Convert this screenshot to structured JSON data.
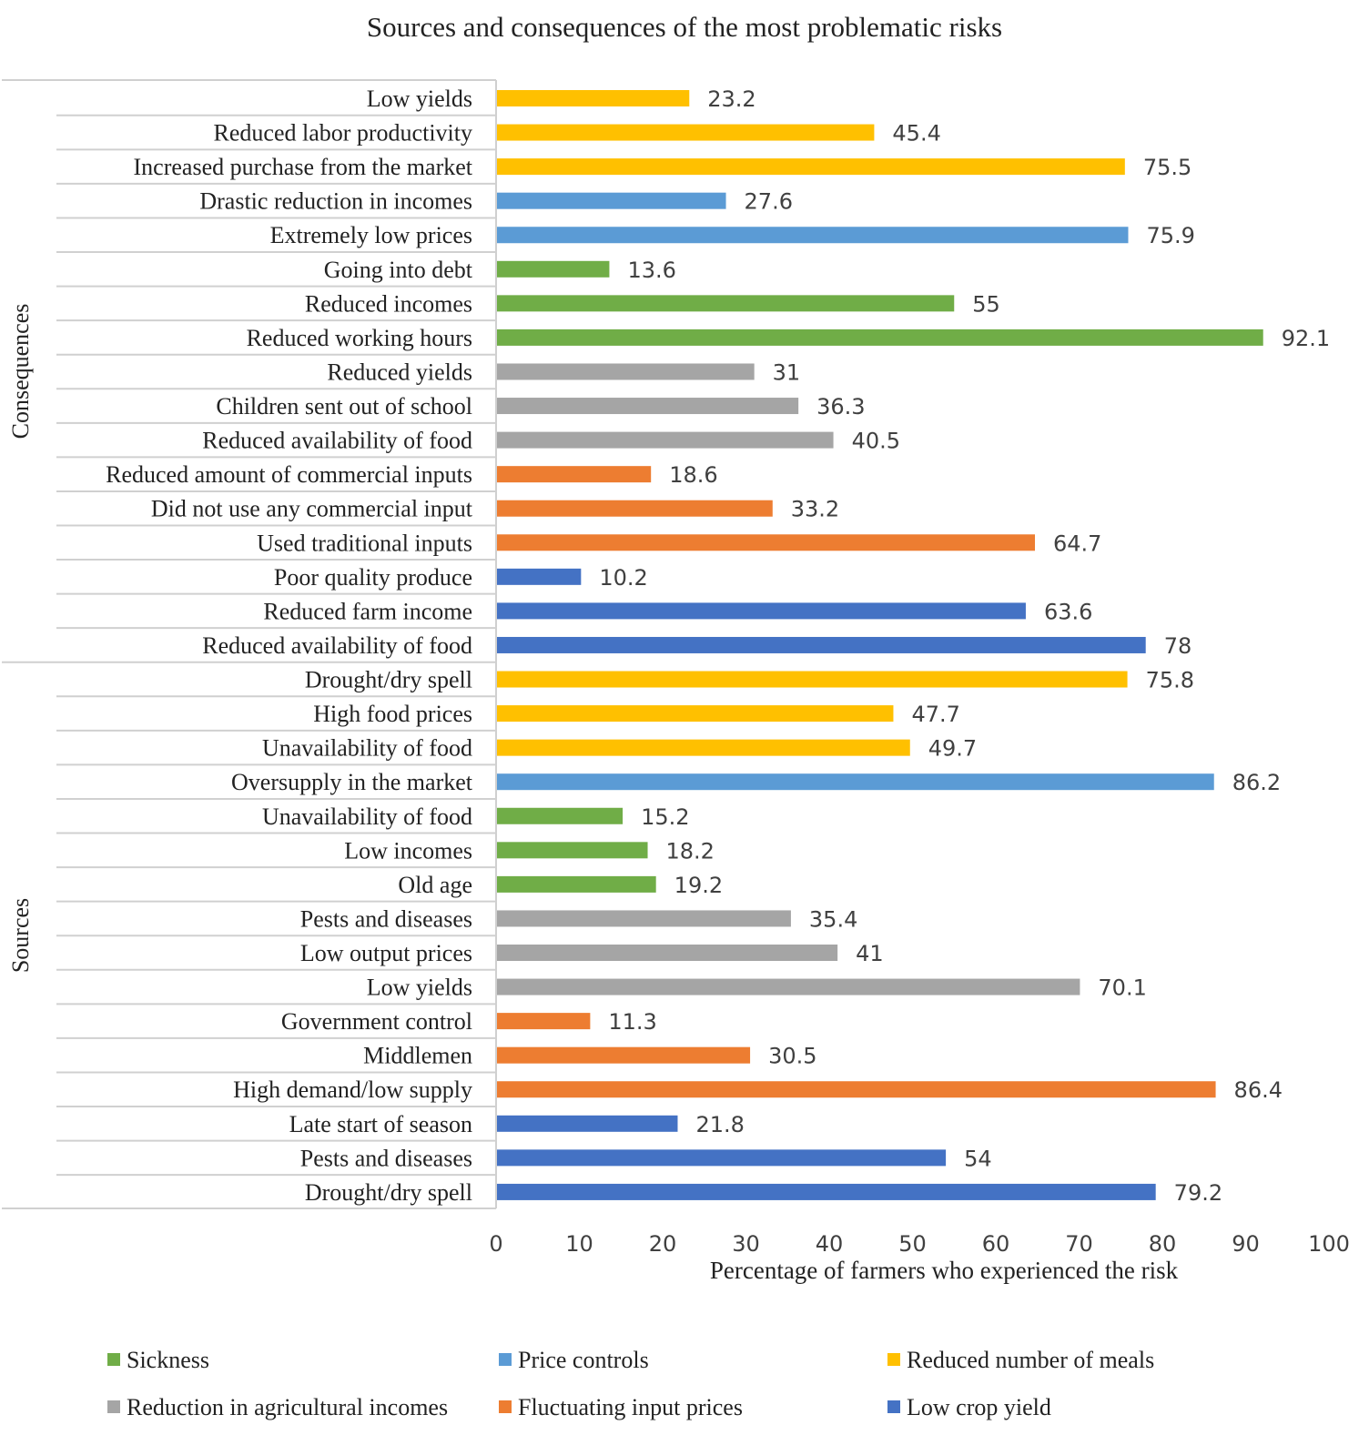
{
  "colors": {
    "sickness": "#70AD47",
    "price_controls": "#5B9BD5",
    "reduced_meals": "#FFC000",
    "agri_incomes": "#A5A5A5",
    "input_prices": "#ED7D31",
    "low_crop_yield": "#4472C4"
  },
  "chart_data": {
    "type": "bar",
    "orientation": "horizontal",
    "title": "Sources and consequences of the most problematic risks",
    "xlabel": "Percentage of farmers who experienced the risk",
    "ylabel": "",
    "xlim": [
      0,
      100
    ],
    "xticks": [
      "0",
      "10",
      "20",
      "30",
      "40",
      "50",
      "60",
      "70",
      "80",
      "90",
      "100"
    ],
    "group_labels": [
      "Consequences",
      "Sources"
    ],
    "legend": [
      {
        "label": "Sickness",
        "color_key": "sickness"
      },
      {
        "label": "Price controls",
        "color_key": "price_controls"
      },
      {
        "label": "Reduced number of meals",
        "color_key": "reduced_meals"
      },
      {
        "label": "Reduction in agricultural incomes",
        "color_key": "agri_incomes"
      },
      {
        "label": "Fluctuating input prices",
        "color_key": "input_prices"
      },
      {
        "label": "Low crop yield",
        "color_key": "low_crop_yield"
      }
    ],
    "bars": [
      {
        "label": "Low yields",
        "value": 23.2,
        "value_label": "23.2",
        "series": "reduced_meals",
        "group": "Consequences"
      },
      {
        "label": "Reduced labor productivity",
        "value": 45.4,
        "value_label": "45.4",
        "series": "reduced_meals",
        "group": "Consequences"
      },
      {
        "label": "Increased purchase from the market",
        "value": 75.5,
        "value_label": "75.5",
        "series": "reduced_meals",
        "group": "Consequences"
      },
      {
        "label": "Drastic reduction in incomes",
        "value": 27.6,
        "value_label": "27.6",
        "series": "price_controls",
        "group": "Consequences"
      },
      {
        "label": "Extremely low prices",
        "value": 75.9,
        "value_label": "75.9",
        "series": "price_controls",
        "group": "Consequences"
      },
      {
        "label": "Going into debt",
        "value": 13.6,
        "value_label": "13.6",
        "series": "sickness",
        "group": "Consequences"
      },
      {
        "label": "Reduced incomes",
        "value": 55,
        "value_label": "55",
        "series": "sickness",
        "group": "Consequences"
      },
      {
        "label": "Reduced working hours",
        "value": 92.1,
        "value_label": "92.1",
        "series": "sickness",
        "group": "Consequences"
      },
      {
        "label": "Reduced yields",
        "value": 31,
        "value_label": "31",
        "series": "agri_incomes",
        "group": "Consequences"
      },
      {
        "label": "Children sent out of school",
        "value": 36.3,
        "value_label": "36.3",
        "series": "agri_incomes",
        "group": "Consequences"
      },
      {
        "label": "Reduced availability of food",
        "value": 40.5,
        "value_label": "40.5",
        "series": "agri_incomes",
        "group": "Consequences"
      },
      {
        "label": "Reduced amount of commercial inputs",
        "value": 18.6,
        "value_label": "18.6",
        "series": "input_prices",
        "group": "Consequences"
      },
      {
        "label": "Did not use any commercial input",
        "value": 33.2,
        "value_label": "33.2",
        "series": "input_prices",
        "group": "Consequences"
      },
      {
        "label": "Used traditional inputs",
        "value": 64.7,
        "value_label": "64.7",
        "series": "input_prices",
        "group": "Consequences"
      },
      {
        "label": "Poor quality produce",
        "value": 10.2,
        "value_label": "10.2",
        "series": "low_crop_yield",
        "group": "Consequences"
      },
      {
        "label": "Reduced farm income",
        "value": 63.6,
        "value_label": "63.6",
        "series": "low_crop_yield",
        "group": "Consequences"
      },
      {
        "label": "Reduced availability of food",
        "value": 78,
        "value_label": "78",
        "series": "low_crop_yield",
        "group": "Consequences"
      },
      {
        "label": "Drought/dry spell",
        "value": 75.8,
        "value_label": "75.8",
        "series": "reduced_meals",
        "group": "Sources"
      },
      {
        "label": "High food prices",
        "value": 47.7,
        "value_label": "47.7",
        "series": "reduced_meals",
        "group": "Sources"
      },
      {
        "label": "Unavailability of food",
        "value": 49.7,
        "value_label": "49.7",
        "series": "reduced_meals",
        "group": "Sources"
      },
      {
        "label": "Oversupply in the market",
        "value": 86.2,
        "value_label": "86.2",
        "series": "price_controls",
        "group": "Sources"
      },
      {
        "label": "Unavailability of food",
        "value": 15.2,
        "value_label": "15.2",
        "series": "sickness",
        "group": "Sources"
      },
      {
        "label": "Low incomes",
        "value": 18.2,
        "value_label": "18.2",
        "series": "sickness",
        "group": "Sources"
      },
      {
        "label": "Old age",
        "value": 19.2,
        "value_label": "19.2",
        "series": "sickness",
        "group": "Sources"
      },
      {
        "label": "Pests and diseases",
        "value": 35.4,
        "value_label": "35.4",
        "series": "agri_incomes",
        "group": "Sources"
      },
      {
        "label": "Low output prices",
        "value": 41,
        "value_label": "41",
        "series": "agri_incomes",
        "group": "Sources"
      },
      {
        "label": "Low yields",
        "value": 70.1,
        "value_label": "70.1",
        "series": "agri_incomes",
        "group": "Sources"
      },
      {
        "label": "Government control",
        "value": 11.3,
        "value_label": "11.3",
        "series": "input_prices",
        "group": "Sources"
      },
      {
        "label": "Middlemen",
        "value": 30.5,
        "value_label": "30.5",
        "series": "input_prices",
        "group": "Sources"
      },
      {
        "label": "High demand/low supply",
        "value": 86.4,
        "value_label": "86.4",
        "series": "input_prices",
        "group": "Sources"
      },
      {
        "label": "Late start of season",
        "value": 21.8,
        "value_label": "21.8",
        "series": "low_crop_yield",
        "group": "Sources"
      },
      {
        "label": "Pests and diseases",
        "value": 54,
        "value_label": "54",
        "series": "low_crop_yield",
        "group": "Sources"
      },
      {
        "label": "Drought/dry spell",
        "value": 79.2,
        "value_label": "79.2",
        "series": "low_crop_yield",
        "group": "Sources"
      }
    ]
  }
}
